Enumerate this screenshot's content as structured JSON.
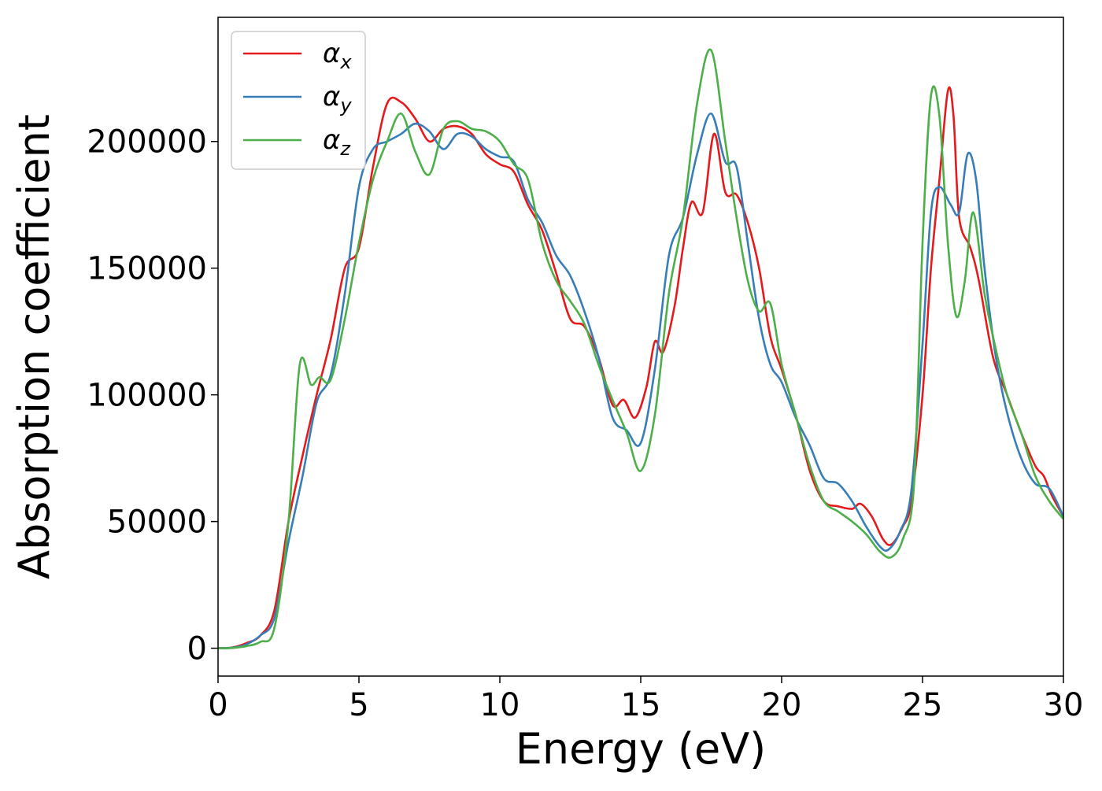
{
  "chart_data": {
    "type": "line",
    "title": "",
    "xlabel": "Energy (eV)",
    "ylabel": "Absorption coefficient",
    "xlim": [
      0,
      30
    ],
    "ylim": [
      -11000,
      249000
    ],
    "xticks": [
      0,
      5,
      10,
      15,
      20,
      25,
      30
    ],
    "yticks": [
      0,
      50000,
      100000,
      150000,
      200000
    ],
    "grid": false,
    "legend": "top-left",
    "series": [
      {
        "name": "α",
        "subscript": "x",
        "color": "#e41a1c",
        "points": [
          [
            0,
            0
          ],
          [
            0.5,
            300
          ],
          [
            1,
            2000
          ],
          [
            1.5,
            5000
          ],
          [
            2,
            15000
          ],
          [
            2.5,
            50000
          ],
          [
            3,
            76000
          ],
          [
            3.5,
            100000
          ],
          [
            4,
            122000
          ],
          [
            4.5,
            150000
          ],
          [
            5,
            158000
          ],
          [
            5.5,
            190000
          ],
          [
            6,
            215000
          ],
          [
            6.5,
            215500
          ],
          [
            7,
            209000
          ],
          [
            7.5,
            200000
          ],
          [
            8,
            205000
          ],
          [
            8.5,
            206000
          ],
          [
            9,
            203000
          ],
          [
            9.5,
            195000
          ],
          [
            10,
            191000
          ],
          [
            10.5,
            188000
          ],
          [
            11,
            175000
          ],
          [
            11.5,
            165000
          ],
          [
            12,
            148000
          ],
          [
            12.5,
            130000
          ],
          [
            13,
            127000
          ],
          [
            13.5,
            115000
          ],
          [
            14,
            96000
          ],
          [
            14.4,
            98000
          ],
          [
            14.8,
            91000
          ],
          [
            15.2,
            103000
          ],
          [
            15.5,
            121000
          ],
          [
            15.8,
            117000
          ],
          [
            16.2,
            135000
          ],
          [
            16.5,
            158000
          ],
          [
            16.8,
            176000
          ],
          [
            17.2,
            172000
          ],
          [
            17.6,
            203000
          ],
          [
            18,
            180000
          ],
          [
            18.4,
            179000
          ],
          [
            18.8,
            168000
          ],
          [
            19.2,
            150000
          ],
          [
            19.6,
            123000
          ],
          [
            20,
            110000
          ],
          [
            20.5,
            92000
          ],
          [
            21,
            70000
          ],
          [
            21.5,
            58000
          ],
          [
            22,
            56000
          ],
          [
            22.5,
            55000
          ],
          [
            22.8,
            57000
          ],
          [
            23.2,
            52000
          ],
          [
            23.6,
            43000
          ],
          [
            23.9,
            41000
          ],
          [
            24.3,
            48000
          ],
          [
            24.6,
            58000
          ],
          [
            25,
            100000
          ],
          [
            25.3,
            150000
          ],
          [
            25.6,
            185000
          ],
          [
            25.9,
            220000
          ],
          [
            26.1,
            210000
          ],
          [
            26.3,
            170000
          ],
          [
            26.7,
            158000
          ],
          [
            27,
            145000
          ],
          [
            27.5,
            115000
          ],
          [
            28,
            100000
          ],
          [
            28.5,
            85000
          ],
          [
            29,
            72000
          ],
          [
            29.3,
            68000
          ],
          [
            29.6,
            60000
          ],
          [
            30,
            52000
          ]
        ]
      },
      {
        "name": "α",
        "subscript": "y",
        "color": "#377eb8",
        "points": [
          [
            0,
            0
          ],
          [
            0.5,
            200
          ],
          [
            1,
            1500
          ],
          [
            1.5,
            5000
          ],
          [
            2,
            12000
          ],
          [
            2.5,
            42000
          ],
          [
            3,
            68000
          ],
          [
            3.5,
            97000
          ],
          [
            4,
            108000
          ],
          [
            4.5,
            140000
          ],
          [
            5,
            182000
          ],
          [
            5.5,
            197000
          ],
          [
            6,
            200000
          ],
          [
            6.5,
            203000
          ],
          [
            7,
            207000
          ],
          [
            7.5,
            204000
          ],
          [
            8,
            197000
          ],
          [
            8.5,
            203000
          ],
          [
            9,
            202000
          ],
          [
            9.5,
            197000
          ],
          [
            10,
            194000
          ],
          [
            10.5,
            192000
          ],
          [
            11,
            177000
          ],
          [
            11.5,
            168000
          ],
          [
            12,
            155000
          ],
          [
            12.5,
            147000
          ],
          [
            13,
            133000
          ],
          [
            13.5,
            115000
          ],
          [
            14,
            91000
          ],
          [
            14.5,
            86000
          ],
          [
            15,
            81000
          ],
          [
            15.5,
            110000
          ],
          [
            16,
            155000
          ],
          [
            16.5,
            170000
          ],
          [
            17,
            195000
          ],
          [
            17.5,
            211000
          ],
          [
            18,
            192000
          ],
          [
            18.4,
            190000
          ],
          [
            18.8,
            160000
          ],
          [
            19.2,
            130000
          ],
          [
            19.6,
            112000
          ],
          [
            20,
            105000
          ],
          [
            20.5,
            91000
          ],
          [
            21,
            80000
          ],
          [
            21.5,
            67000
          ],
          [
            22,
            65000
          ],
          [
            22.5,
            58000
          ],
          [
            23,
            48000
          ],
          [
            23.5,
            40000
          ],
          [
            23.8,
            39000
          ],
          [
            24.2,
            46000
          ],
          [
            24.6,
            62000
          ],
          [
            25,
            120000
          ],
          [
            25.3,
            172000
          ],
          [
            25.6,
            182000
          ],
          [
            26,
            175000
          ],
          [
            26.3,
            172000
          ],
          [
            26.6,
            195000
          ],
          [
            26.9,
            185000
          ],
          [
            27.2,
            150000
          ],
          [
            27.6,
            115000
          ],
          [
            28,
            93000
          ],
          [
            28.5,
            75000
          ],
          [
            29,
            65000
          ],
          [
            29.5,
            63000
          ],
          [
            30,
            52000
          ]
        ]
      },
      {
        "name": "α",
        "subscript": "z",
        "color": "#4daf4a",
        "points": [
          [
            0,
            0
          ],
          [
            0.5,
            100
          ],
          [
            1,
            800
          ],
          [
            1.5,
            2500
          ],
          [
            2,
            8000
          ],
          [
            2.5,
            50000
          ],
          [
            2.9,
            112000
          ],
          [
            3.3,
            104000
          ],
          [
            3.6,
            107000
          ],
          [
            4,
            106000
          ],
          [
            4.5,
            130000
          ],
          [
            5,
            160000
          ],
          [
            5.5,
            185000
          ],
          [
            6,
            200000
          ],
          [
            6.5,
            211000
          ],
          [
            7,
            196000
          ],
          [
            7.5,
            187000
          ],
          [
            8,
            205000
          ],
          [
            8.5,
            208000
          ],
          [
            9,
            205000
          ],
          [
            9.5,
            204000
          ],
          [
            10,
            200000
          ],
          [
            10.5,
            191000
          ],
          [
            11,
            185000
          ],
          [
            11.5,
            160000
          ],
          [
            12,
            145000
          ],
          [
            12.5,
            137000
          ],
          [
            13,
            128000
          ],
          [
            13.5,
            112000
          ],
          [
            14,
            98000
          ],
          [
            14.5,
            85000
          ],
          [
            15,
            70000
          ],
          [
            15.5,
            92000
          ],
          [
            16,
            140000
          ],
          [
            16.5,
            170000
          ],
          [
            17,
            215000
          ],
          [
            17.5,
            236000
          ],
          [
            18,
            200000
          ],
          [
            18.4,
            170000
          ],
          [
            18.8,
            145000
          ],
          [
            19.2,
            133000
          ],
          [
            19.6,
            136000
          ],
          [
            20,
            112000
          ],
          [
            20.5,
            92000
          ],
          [
            21,
            72000
          ],
          [
            21.5,
            58000
          ],
          [
            22,
            54000
          ],
          [
            22.5,
            50000
          ],
          [
            23,
            45000
          ],
          [
            23.5,
            38000
          ],
          [
            23.9,
            36000
          ],
          [
            24.3,
            43000
          ],
          [
            24.7,
            65000
          ],
          [
            25,
            160000
          ],
          [
            25.3,
            218000
          ],
          [
            25.6,
            210000
          ],
          [
            25.9,
            160000
          ],
          [
            26.2,
            131000
          ],
          [
            26.5,
            145000
          ],
          [
            26.8,
            172000
          ],
          [
            27.2,
            140000
          ],
          [
            27.6,
            118000
          ],
          [
            28,
            100000
          ],
          [
            28.5,
            85000
          ],
          [
            29,
            68000
          ],
          [
            29.5,
            58000
          ],
          [
            30,
            51000
          ]
        ]
      }
    ]
  }
}
